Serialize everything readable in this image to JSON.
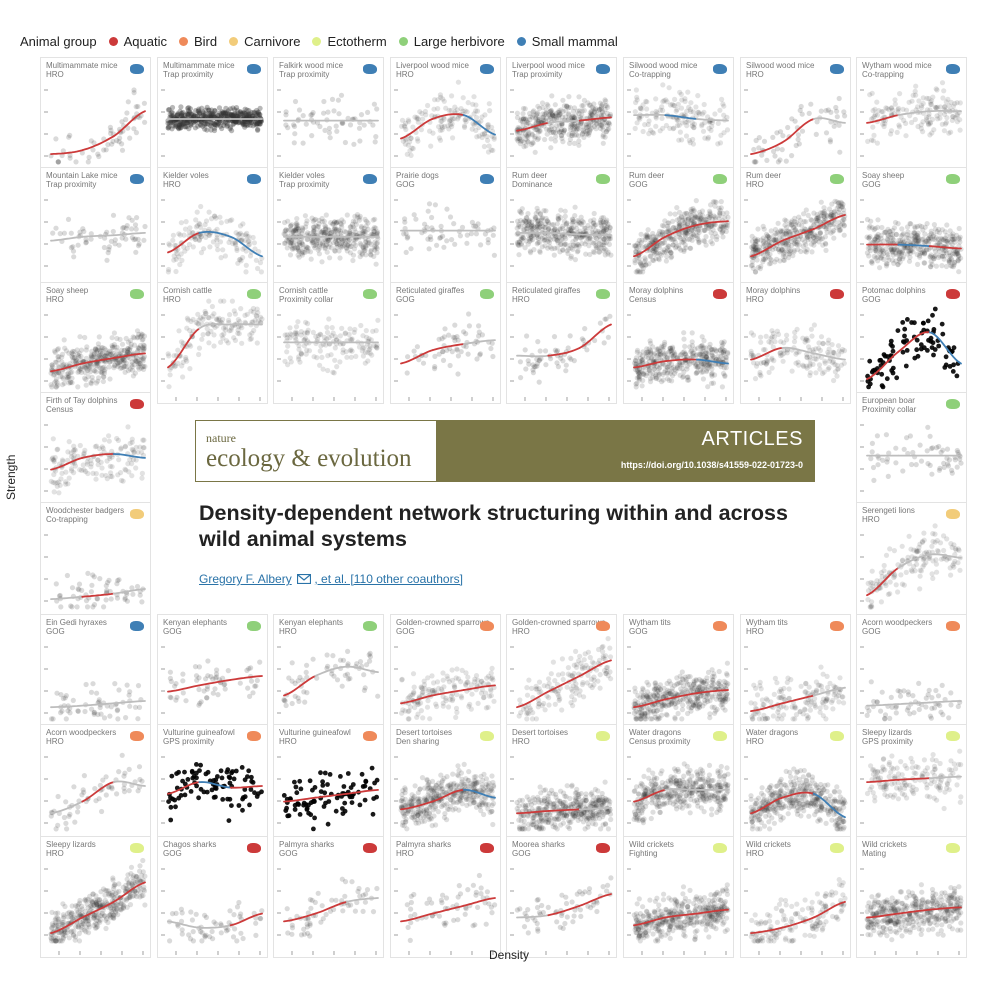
{
  "legend": {
    "title": "Animal group",
    "items": [
      {
        "label": "Aquatic",
        "color": "#cc3a3a"
      },
      {
        "label": "Bird",
        "color": "#ef8a5a"
      },
      {
        "label": "Carnivore",
        "color": "#f2cc7a"
      },
      {
        "label": "Ectotherm",
        "color": "#dff08a"
      },
      {
        "label": "Large herbivore",
        "color": "#8fd07a"
      },
      {
        "label": "Small mammal",
        "color": "#3f7fb5"
      }
    ]
  },
  "axes": {
    "xlabel": "Density",
    "ylabel": "Strength"
  },
  "article": {
    "journal_small": "nature",
    "journal_big": "ecology & evolution",
    "section": "ARTICLES",
    "doi": "https://doi.org/10.1038/s41559-022-01723-0",
    "title": "Density-dependent network structuring within and across wild animal systems",
    "author_main": "Gregory F. Albery",
    "author_rest": ", et al. [110 other coauthors]"
  },
  "chart_data": {
    "type": "scatter",
    "xlabel": "Density",
    "ylabel": "Strength",
    "panels": [
      {
        "row": 0,
        "col": 0,
        "species": "Multimammate mice",
        "method": "HRO",
        "group": "Small mammal",
        "density": "sparse",
        "curve": [
          0.05,
          0.1,
          0.28,
          0.6
        ],
        "colors": [
          "red",
          "red",
          "red"
        ]
      },
      {
        "row": 0,
        "col": 1,
        "species": "Multimammate mice",
        "method": "Trap proximity",
        "group": "Small mammal",
        "density": "band",
        "curve": [
          0.5,
          0.5,
          0.5,
          0.5
        ],
        "colors": [
          "gray",
          "gray",
          "gray"
        ]
      },
      {
        "row": 0,
        "col": 2,
        "species": "Falkirk wood mice",
        "method": "Trap proximity",
        "group": "Small mammal",
        "density": "sparse",
        "curve": [
          0.48,
          0.48,
          0.48,
          0.48
        ],
        "colors": [
          "gray",
          "gray",
          "gray"
        ]
      },
      {
        "row": 0,
        "col": 3,
        "species": "Liverpool wood mice",
        "method": "HRO",
        "group": "Small mammal",
        "density": "medium",
        "curve": [
          0.25,
          0.5,
          0.55,
          0.3
        ],
        "colors": [
          "red",
          "red",
          "blue"
        ]
      },
      {
        "row": 0,
        "col": 4,
        "species": "Liverpool wood mice",
        "method": "Trap proximity",
        "group": "Small mammal",
        "density": "dense",
        "curve": [
          0.35,
          0.45,
          0.48,
          0.52
        ],
        "colors": [
          "red",
          "gray",
          "red"
        ]
      },
      {
        "row": 0,
        "col": 5,
        "species": "Silwood wood mice",
        "method": "Co-trapping",
        "group": "Small mammal",
        "density": "medium",
        "curve": [
          0.55,
          0.55,
          0.5,
          0.48
        ],
        "colors": [
          "gray",
          "blue",
          "gray"
        ]
      },
      {
        "row": 0,
        "col": 6,
        "species": "Silwood wood mice",
        "method": "HRO",
        "group": "Small mammal",
        "density": "sparse",
        "curve": [
          0.05,
          0.2,
          0.5,
          0.45
        ],
        "colors": [
          "red",
          "red",
          "gray"
        ]
      },
      {
        "row": 0,
        "col": 7,
        "species": "Wytham wood mice",
        "method": "Co-trapping",
        "group": "Small mammal",
        "density": "medium",
        "curve": [
          0.45,
          0.55,
          0.6,
          0.6
        ],
        "colors": [
          "red",
          "gray",
          "gray"
        ]
      },
      {
        "row": 1,
        "col": 0,
        "species": "Mountain Lake mice",
        "method": "Trap proximity",
        "group": "Small mammal",
        "density": "sparse",
        "curve": [
          0.35,
          0.4,
          0.42,
          0.45
        ],
        "colors": [
          "gray",
          "gray",
          "gray"
        ]
      },
      {
        "row": 1,
        "col": 1,
        "species": "Kielder voles",
        "method": "HRO",
        "group": "Small mammal",
        "density": "medium",
        "curve": [
          0.2,
          0.45,
          0.4,
          0.15
        ],
        "colors": [
          "red",
          "blue",
          "blue"
        ]
      },
      {
        "row": 1,
        "col": 2,
        "species": "Kielder voles",
        "method": "Trap proximity",
        "group": "Small mammal",
        "density": "dense",
        "curve": [
          0.4,
          0.4,
          0.4,
          0.4
        ],
        "colors": [
          "gray",
          "gray",
          "gray"
        ]
      },
      {
        "row": 1,
        "col": 3,
        "species": "Prairie dogs",
        "method": "GOG",
        "group": "Small mammal",
        "density": "sparse",
        "curve": [
          0.48,
          0.48,
          0.48,
          0.48
        ],
        "colors": [
          "gray",
          "gray",
          "gray"
        ]
      },
      {
        "row": 1,
        "col": 4,
        "species": "Rum deer",
        "method": "Dominance",
        "group": "Large herbivore",
        "density": "dense",
        "curve": [
          0.45,
          0.45,
          0.43,
          0.42
        ],
        "colors": [
          "gray",
          "gray",
          "gray"
        ]
      },
      {
        "row": 1,
        "col": 5,
        "species": "Rum deer",
        "method": "GOG",
        "group": "Large herbivore",
        "density": "dense",
        "curve": [
          0.15,
          0.4,
          0.55,
          0.6
        ],
        "colors": [
          "red",
          "red",
          "red"
        ]
      },
      {
        "row": 1,
        "col": 6,
        "species": "Rum deer",
        "method": "HRO",
        "group": "Large herbivore",
        "density": "dense",
        "curve": [
          0.15,
          0.35,
          0.5,
          0.68
        ],
        "colors": [
          "red",
          "red",
          "red"
        ]
      },
      {
        "row": 1,
        "col": 7,
        "species": "Soay sheep",
        "method": "GOG",
        "group": "Large herbivore",
        "density": "dense",
        "curve": [
          0.3,
          0.3,
          0.28,
          0.25
        ],
        "colors": [
          "red",
          "blue",
          "red"
        ]
      },
      {
        "row": 2,
        "col": 0,
        "species": "Soay sheep",
        "method": "HRO",
        "group": "Large herbivore",
        "density": "dense",
        "curve": [
          0.15,
          0.25,
          0.32,
          0.38
        ],
        "colors": [
          "red",
          "red",
          "red"
        ]
      },
      {
        "row": 2,
        "col": 1,
        "species": "Cornish cattle",
        "method": "HRO",
        "group": "Large herbivore",
        "density": "medium",
        "curve": [
          0.2,
          0.7,
          0.75,
          0.75
        ],
        "colors": [
          "red",
          "gray",
          "gray"
        ]
      },
      {
        "row": 2,
        "col": 2,
        "species": "Cornish cattle",
        "method": "Proximity collar",
        "group": "Large herbivore",
        "density": "medium",
        "curve": [
          0.52,
          0.52,
          0.52,
          0.52
        ],
        "colors": [
          "gray",
          "gray",
          "gray"
        ]
      },
      {
        "row": 2,
        "col": 3,
        "species": "Reticulated giraffes",
        "method": "GOG",
        "group": "Large herbivore",
        "density": "sparse",
        "curve": [
          0.25,
          0.42,
          0.5,
          0.55
        ],
        "colors": [
          "red",
          "red",
          "gray"
        ]
      },
      {
        "row": 2,
        "col": 4,
        "species": "Reticulated giraffes",
        "method": "HRO",
        "group": "Large herbivore",
        "density": "sparse",
        "curve": [
          0.35,
          0.35,
          0.45,
          0.75
        ],
        "colors": [
          "gray",
          "red",
          "red"
        ]
      },
      {
        "row": 2,
        "col": 5,
        "species": "Moray dolphins",
        "method": "Census",
        "group": "Aquatic",
        "density": "dense",
        "curve": [
          0.2,
          0.28,
          0.3,
          0.25
        ],
        "colors": [
          "red",
          "red",
          "blue"
        ]
      },
      {
        "row": 2,
        "col": 6,
        "species": "Moray dolphins",
        "method": "HRO",
        "group": "Aquatic",
        "density": "medium",
        "curve": [
          0.3,
          0.45,
          0.38,
          0.3
        ],
        "colors": [
          "red",
          "gray",
          "gray"
        ]
      },
      {
        "row": 2,
        "col": 7,
        "species": "Potomac dolphins",
        "method": "GOG",
        "group": "Aquatic",
        "density": "black",
        "curve": [
          0.05,
          0.4,
          0.65,
          0.25
        ],
        "colors": [
          "red",
          "red",
          "blue"
        ]
      },
      {
        "row": 3,
        "col": 0,
        "species": "Firth of Tay dolphins",
        "method": "Census",
        "group": "Aquatic",
        "density": "medium",
        "curve": [
          0.3,
          0.45,
          0.5,
          0.45
        ],
        "colors": [
          "red",
          "red",
          "blue"
        ]
      },
      {
        "row": 3,
        "col": 7,
        "species": "European boar",
        "method": "Proximity collar",
        "group": "Large herbivore",
        "density": "sparse",
        "curve": [
          0.48,
          0.48,
          0.48,
          0.48
        ],
        "colors": [
          "gray",
          "gray",
          "gray"
        ]
      },
      {
        "row": 4,
        "col": 0,
        "species": "Woodchester badgers",
        "method": "Co-trapping",
        "group": "Carnivore",
        "density": "sparse",
        "curve": [
          0.05,
          0.08,
          0.12,
          0.18
        ],
        "colors": [
          "gray",
          "red",
          "gray"
        ]
      },
      {
        "row": 4,
        "col": 7,
        "species": "Serengeti lions",
        "method": "HRO",
        "group": "Carnivore",
        "density": "medium",
        "curve": [
          0.1,
          0.45,
          0.62,
          0.58
        ],
        "colors": [
          "red",
          "gray",
          "gray"
        ]
      },
      {
        "row": 5,
        "col": 0,
        "species": "Ein Gedi hyraxes",
        "method": "GOG",
        "group": "Small mammal",
        "density": "sparse",
        "curve": [
          0.1,
          0.12,
          0.15,
          0.18
        ],
        "colors": [
          "gray",
          "gray",
          "gray"
        ]
      },
      {
        "row": 5,
        "col": 1,
        "species": "Kenyan elephants",
        "method": "GOG",
        "group": "Large herbivore",
        "density": "sparse",
        "curve": [
          0.3,
          0.38,
          0.45,
          0.5
        ],
        "colors": [
          "red",
          "red",
          "red"
        ]
      },
      {
        "row": 5,
        "col": 2,
        "species": "Kenyan elephants",
        "method": "HRO",
        "group": "Large herbivore",
        "density": "sparse",
        "curve": [
          0.25,
          0.5,
          0.62,
          0.55
        ],
        "colors": [
          "red",
          "gray",
          "gray"
        ]
      },
      {
        "row": 5,
        "col": 3,
        "species": "Golden-crowned sparrows",
        "method": "GOG",
        "group": "Bird",
        "density": "medium",
        "curve": [
          0.15,
          0.25,
          0.32,
          0.38
        ],
        "colors": [
          "red",
          "red",
          "red"
        ]
      },
      {
        "row": 5,
        "col": 4,
        "species": "Golden-crowned sparrows",
        "method": "HRO",
        "group": "Bird",
        "density": "medium",
        "curve": [
          0.1,
          0.3,
          0.5,
          0.7
        ],
        "colors": [
          "red",
          "red",
          "red"
        ]
      },
      {
        "row": 5,
        "col": 5,
        "species": "Wytham tits",
        "method": "GOG",
        "group": "Bird",
        "density": "dense",
        "curve": [
          0.1,
          0.2,
          0.28,
          0.32
        ],
        "colors": [
          "red",
          "red",
          "red"
        ]
      },
      {
        "row": 5,
        "col": 6,
        "species": "Wytham tits",
        "method": "HRO",
        "group": "Bird",
        "density": "medium",
        "curve": [
          0.05,
          0.15,
          0.25,
          0.35
        ],
        "colors": [
          "red",
          "red",
          "gray"
        ]
      },
      {
        "row": 5,
        "col": 7,
        "species": "Acorn woodpeckers",
        "method": "GOG",
        "group": "Bird",
        "density": "sparse",
        "curve": [
          0.12,
          0.14,
          0.16,
          0.18
        ],
        "colors": [
          "gray",
          "gray",
          "gray"
        ]
      },
      {
        "row": 6,
        "col": 0,
        "species": "Acorn woodpeckers",
        "method": "HRO",
        "group": "Bird",
        "density": "sparse",
        "curve": [
          0.15,
          0.3,
          0.55,
          0.5
        ],
        "colors": [
          "gray",
          "red",
          "gray"
        ]
      },
      {
        "row": 6,
        "col": 1,
        "species": "Vulturine guineafowl",
        "method": "GPS proximity",
        "group": "Bird",
        "density": "black",
        "curve": [
          0.4,
          0.55,
          0.48,
          0.5
        ],
        "colors": [
          "red",
          "blue",
          "red"
        ]
      },
      {
        "row": 6,
        "col": 2,
        "species": "Vulturine guineafowl",
        "method": "HRO",
        "group": "Bird",
        "density": "black",
        "curve": [
          0.3,
          0.35,
          0.4,
          0.45
        ],
        "colors": [
          "red",
          "red",
          "red"
        ]
      },
      {
        "row": 6,
        "col": 3,
        "species": "Desert tortoises",
        "method": "Den sharing",
        "group": "Ectotherm",
        "density": "dense",
        "curve": [
          0.2,
          0.3,
          0.45,
          0.35
        ],
        "colors": [
          "red",
          "red",
          "blue"
        ]
      },
      {
        "row": 6,
        "col": 4,
        "species": "Desert tortoises",
        "method": "HRO",
        "group": "Ectotherm",
        "density": "dense",
        "curve": [
          0.15,
          0.18,
          0.2,
          0.22
        ],
        "colors": [
          "red",
          "red",
          "gray"
        ]
      },
      {
        "row": 6,
        "col": 5,
        "species": "Water dragons",
        "method": "Census proximity",
        "group": "Ectotherm",
        "density": "dense",
        "curve": [
          0.3,
          0.45,
          0.45,
          0.45
        ],
        "colors": [
          "red",
          "gray",
          "gray"
        ]
      },
      {
        "row": 6,
        "col": 6,
        "species": "Water dragons",
        "method": "HRO",
        "group": "Ectotherm",
        "density": "dense",
        "curve": [
          0.15,
          0.35,
          0.4,
          0.1
        ],
        "colors": [
          "red",
          "red",
          "blue"
        ]
      },
      {
        "row": 6,
        "col": 7,
        "species": "Sleepy lizards",
        "method": "GPS proximity",
        "group": "Ectotherm",
        "density": "medium",
        "curve": [
          0.55,
          0.58,
          0.6,
          0.62
        ],
        "colors": [
          "red",
          "red",
          "gray"
        ]
      },
      {
        "row": 7,
        "col": 0,
        "species": "Sleepy lizards",
        "method": "HRO",
        "group": "Ectotherm",
        "density": "dense",
        "curve": [
          0.05,
          0.25,
          0.45,
          0.7
        ],
        "colors": [
          "red",
          "red",
          "red"
        ]
      },
      {
        "row": 7,
        "col": 1,
        "species": "Chagos sharks",
        "method": "GOG",
        "group": "Aquatic",
        "density": "sparse",
        "curve": [
          0.2,
          0.12,
          0.15,
          0.3
        ],
        "colors": [
          "gray",
          "gray",
          "red"
        ]
      },
      {
        "row": 7,
        "col": 2,
        "species": "Palmyra sharks",
        "method": "GOG",
        "group": "Aquatic",
        "density": "sparse",
        "curve": [
          0.2,
          0.3,
          0.45,
          0.5
        ],
        "colors": [
          "red",
          "red",
          "gray"
        ]
      },
      {
        "row": 7,
        "col": 3,
        "species": "Palmyra sharks",
        "method": "HRO",
        "group": "Aquatic",
        "density": "sparse",
        "curve": [
          0.2,
          0.3,
          0.4,
          0.5
        ],
        "colors": [
          "red",
          "red",
          "red"
        ]
      },
      {
        "row": 7,
        "col": 4,
        "species": "Moorea sharks",
        "method": "GOG",
        "group": "Aquatic",
        "density": "sparse",
        "curve": [
          0.25,
          0.28,
          0.4,
          0.55
        ],
        "colors": [
          "gray",
          "red",
          "red"
        ]
      },
      {
        "row": 7,
        "col": 5,
        "species": "Wild crickets",
        "method": "Fighting",
        "group": "Ectotherm",
        "density": "dense",
        "curve": [
          0.15,
          0.25,
          0.3,
          0.35
        ],
        "colors": [
          "red",
          "red",
          "red"
        ]
      },
      {
        "row": 7,
        "col": 6,
        "species": "Wild crickets",
        "method": "HRO",
        "group": "Ectotherm",
        "density": "medium",
        "curve": [
          0.05,
          0.12,
          0.25,
          0.45
        ],
        "colors": [
          "red",
          "red",
          "red"
        ]
      },
      {
        "row": 7,
        "col": 7,
        "species": "Wild crickets",
        "method": "Mating",
        "group": "Ectotherm",
        "density": "dense",
        "curve": [
          0.25,
          0.3,
          0.35,
          0.38
        ],
        "colors": [
          "red",
          "red",
          "red"
        ]
      }
    ]
  }
}
